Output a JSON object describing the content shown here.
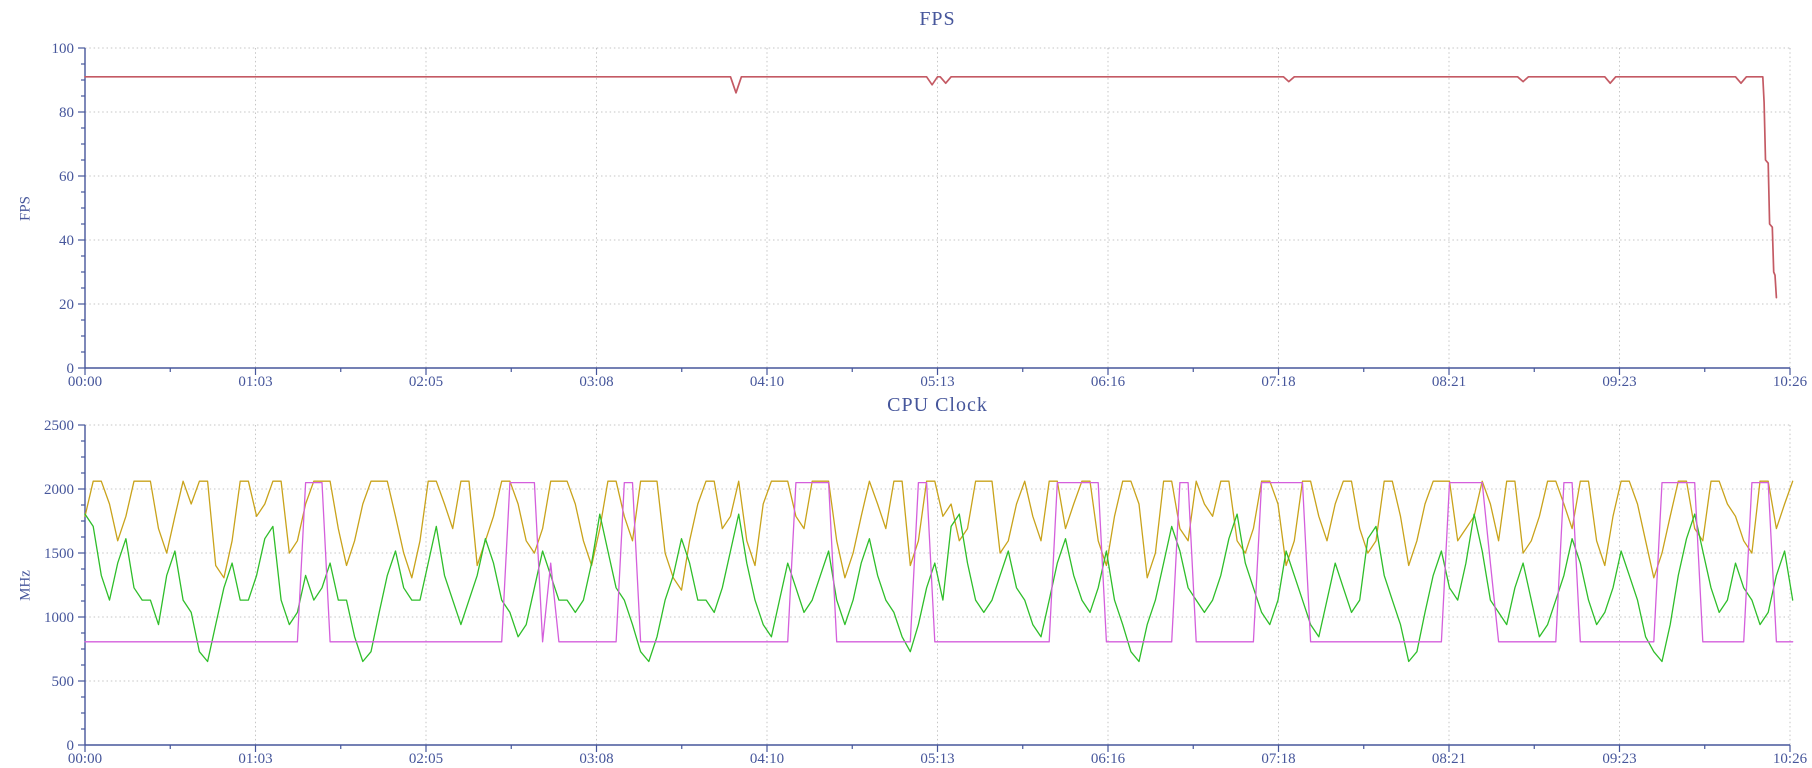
{
  "page": {
    "background": "#ffffff"
  },
  "palette": {
    "axis": "#46569b",
    "label": "#46569b",
    "grid": "#c6c6c6",
    "fps_line": "#c45a64",
    "cpu_gold": "#c9a31b",
    "cpu_green": "#2fbe2a",
    "cpu_magenta": "#d45fdc"
  },
  "chart_data": [
    {
      "type": "line",
      "title": "FPS",
      "ylabel": "FPS",
      "xlabel": "",
      "xlim": [
        0,
        626
      ],
      "ylim": [
        0,
        100
      ],
      "grid": true,
      "legend": "none",
      "yminor": 5,
      "yticks": [
        {
          "v": 0,
          "label": "0"
        },
        {
          "v": 20,
          "label": "20"
        },
        {
          "v": 40,
          "label": "40"
        },
        {
          "v": 60,
          "label": "60"
        },
        {
          "v": 80,
          "label": "80"
        },
        {
          "v": 100,
          "label": "100"
        }
      ],
      "xticks": [
        {
          "v": 0,
          "label": "00:00"
        },
        {
          "v": 62.6,
          "label": "01:03"
        },
        {
          "v": 125.2,
          "label": "02:05"
        },
        {
          "v": 187.8,
          "label": "03:08"
        },
        {
          "v": 250.4,
          "label": "04:10"
        },
        {
          "v": 313,
          "label": "05:13"
        },
        {
          "v": 375.6,
          "label": "06:16"
        },
        {
          "v": 438.2,
          "label": "07:18"
        },
        {
          "v": 500.8,
          "label": "08:21"
        },
        {
          "v": 563.4,
          "label": "09:23"
        },
        {
          "v": 626,
          "label": "10:26"
        }
      ],
      "series": [
        {
          "id": "fps-series",
          "name": "FPS",
          "color": "#c45a64",
          "width": 1.7,
          "points": [
            [
              0,
              91
            ],
            [
              237,
              91
            ],
            [
              239,
              86
            ],
            [
              241,
              91
            ],
            [
              309,
              91
            ],
            [
              311,
              88.5
            ],
            [
              313,
              91
            ],
            [
              314,
              91
            ],
            [
              316,
              89
            ],
            [
              318,
              91
            ],
            [
              440,
              91
            ],
            [
              442,
              89.5
            ],
            [
              444,
              91
            ],
            [
              526,
              91
            ],
            [
              528,
              89.5
            ],
            [
              530,
              91
            ],
            [
              558,
              91
            ],
            [
              560,
              89
            ],
            [
              562,
              91
            ],
            [
              606,
              91
            ],
            [
              608,
              89
            ],
            [
              610,
              91
            ],
            [
              616,
              91
            ],
            [
              616.5,
              83
            ],
            [
              617,
              65
            ],
            [
              618,
              64
            ],
            [
              618.5,
              45
            ],
            [
              619.5,
              44
            ],
            [
              620,
              30
            ],
            [
              620.5,
              29
            ],
            [
              621,
              22
            ]
          ]
        }
      ]
    },
    {
      "type": "line",
      "title": "CPU Clock",
      "ylabel": "MHz",
      "xlabel": "",
      "xlim": [
        0,
        626
      ],
      "ylim": [
        0,
        2500
      ],
      "grid": true,
      "legend": "none",
      "yminor": 125,
      "yticks": [
        {
          "v": 0,
          "label": "0"
        },
        {
          "v": 500,
          "label": "500"
        },
        {
          "v": 1000,
          "label": "1000"
        },
        {
          "v": 1500,
          "label": "1500"
        },
        {
          "v": 2000,
          "label": "2000"
        },
        {
          "v": 2500,
          "label": "2500"
        }
      ],
      "xticks": [
        {
          "v": 0,
          "label": "00:00"
        },
        {
          "v": 62.6,
          "label": "01:03"
        },
        {
          "v": 125.2,
          "label": "02:05"
        },
        {
          "v": 187.8,
          "label": "03:08"
        },
        {
          "v": 250.4,
          "label": "04:10"
        },
        {
          "v": 313,
          "label": "05:13"
        },
        {
          "v": 375.6,
          "label": "06:16"
        },
        {
          "v": 438.2,
          "label": "07:18"
        },
        {
          "v": 500.8,
          "label": "08:21"
        },
        {
          "v": 563.4,
          "label": "09:23"
        },
        {
          "v": 626,
          "label": "10:26"
        }
      ],
      "series": [
        {
          "id": "cpu-series-gold",
          "name": "CPU Clock (gold)",
          "color": "#c9a31b",
          "width": 1.3,
          "dt": 3,
          "values": [
            1787,
            2061,
            2061,
            1883,
            1595,
            1787,
            2061,
            2061,
            2061,
            1691,
            1499,
            1787,
            2061,
            1883,
            2061,
            2061,
            1402,
            1306,
            1595,
            2061,
            2061,
            1787,
            1883,
            2061,
            2061,
            1499,
            1595,
            1883,
            2061,
            2061,
            2061,
            1691,
            1402,
            1595,
            1883,
            2061,
            2061,
            2061,
            1787,
            1499,
            1306,
            1595,
            2061,
            2061,
            1883,
            1691,
            2061,
            2061,
            1402,
            1595,
            1787,
            2061,
            2061,
            1883,
            1595,
            1499,
            1691,
            2061,
            2061,
            2061,
            1883,
            1595,
            1402,
            1691,
            2061,
            2061,
            1787,
            1595,
            2061,
            2061,
            2061,
            1499,
            1306,
            1210,
            1595,
            1883,
            2061,
            2061,
            1691,
            1787,
            2061,
            1595,
            1402,
            1883,
            2061,
            2061,
            2061,
            1787,
            1691,
            2061,
            2061,
            2061,
            1595,
            1306,
            1499,
            1787,
            2061,
            1883,
            1691,
            2061,
            2061,
            1402,
            1595,
            2061,
            2061,
            1787,
            1883,
            1595,
            1691,
            2061,
            2061,
            2061,
            1499,
            1595,
            1883,
            2061,
            1787,
            1595,
            2061,
            2061,
            1691,
            1883,
            2061,
            2061,
            1595,
            1402,
            1787,
            2061,
            2061,
            1883,
            1306,
            1499,
            2061,
            2061,
            1691,
            1595,
            2061,
            1883,
            1787,
            2061,
            2061,
            1595,
            1499,
            1691,
            2061,
            2061,
            1883,
            1402,
            1595,
            2061,
            2061,
            1787,
            1595,
            1883,
            2061,
            2061,
            1691,
            1499,
            1595,
            2061,
            2061,
            1787,
            1402,
            1595,
            1883,
            2061,
            2061,
            2061,
            1595,
            1691,
            1787,
            2061,
            1883,
            1595,
            2061,
            2061,
            1499,
            1595,
            1787,
            2061,
            2061,
            1883,
            1691,
            2061,
            2061,
            1595,
            1402,
            1787,
            2061,
            2061,
            1883,
            1595,
            1306,
            1499,
            1787,
            2061,
            2061,
            1691,
            1595,
            2061,
            2061,
            1883,
            1787,
            1595,
            1499,
            2061,
            2061,
            1691,
            1883,
            2061
          ]
        },
        {
          "id": "cpu-series-green",
          "name": "CPU Clock (green)",
          "color": "#2fbe2a",
          "width": 1.3,
          "dt": 3,
          "values": [
            1804,
            1708,
            1325,
            1132,
            1421,
            1612,
            1228,
            1132,
            1132,
            941,
            1325,
            1516,
            1132,
            1036,
            729,
            652,
            941,
            1228,
            1421,
            1132,
            1132,
            1325,
            1612,
            1708,
            1132,
            941,
            1036,
            1325,
            1132,
            1228,
            1421,
            1132,
            1132,
            845,
            652,
            729,
            1036,
            1325,
            1516,
            1228,
            1132,
            1132,
            1421,
            1708,
            1325,
            1132,
            941,
            1132,
            1325,
            1612,
            1421,
            1132,
            1036,
            845,
            941,
            1228,
            1516,
            1325,
            1132,
            1132,
            1036,
            1132,
            1421,
            1804,
            1516,
            1228,
            1132,
            941,
            729,
            652,
            845,
            1132,
            1325,
            1612,
            1421,
            1132,
            1132,
            1036,
            1228,
            1516,
            1804,
            1421,
            1132,
            941,
            845,
            1132,
            1421,
            1228,
            1036,
            1132,
            1325,
            1516,
            1132,
            941,
            1132,
            1421,
            1612,
            1325,
            1132,
            1036,
            845,
            729,
            941,
            1228,
            1421,
            1132,
            1708,
            1804,
            1421,
            1132,
            1036,
            1132,
            1325,
            1516,
            1228,
            1132,
            941,
            845,
            1132,
            1421,
            1612,
            1325,
            1132,
            1036,
            1228,
            1516,
            1132,
            941,
            729,
            652,
            941,
            1132,
            1421,
            1708,
            1516,
            1228,
            1132,
            1036,
            1132,
            1325,
            1612,
            1804,
            1421,
            1228,
            1036,
            941,
            1132,
            1516,
            1325,
            1132,
            941,
            845,
            1132,
            1421,
            1228,
            1036,
            1132,
            1612,
            1708,
            1325,
            1132,
            941,
            652,
            729,
            1036,
            1325,
            1516,
            1228,
            1132,
            1421,
            1804,
            1516,
            1132,
            1036,
            941,
            1228,
            1421,
            1132,
            845,
            941,
            1132,
            1325,
            1612,
            1421,
            1132,
            941,
            1036,
            1228,
            1516,
            1325,
            1132,
            845,
            729,
            652,
            941,
            1325,
            1612,
            1804,
            1516,
            1228,
            1036,
            1132,
            1421,
            1228,
            1132,
            941,
            1036,
            1325,
            1516,
            1132
          ]
        },
        {
          "id": "cpu-series-magenta",
          "name": "CPU Clock (magenta)",
          "color": "#d45fdc",
          "width": 1.3,
          "dt": 3,
          "values": [
            806,
            806,
            806,
            806,
            806,
            806,
            806,
            806,
            806,
            806,
            806,
            806,
            806,
            806,
            806,
            806,
            806,
            806,
            806,
            806,
            806,
            806,
            806,
            806,
            806,
            806,
            806,
            2050,
            2050,
            2050,
            806,
            806,
            806,
            806,
            806,
            806,
            806,
            806,
            806,
            806,
            806,
            806,
            806,
            806,
            806,
            806,
            806,
            806,
            806,
            806,
            806,
            806,
            2050,
            2050,
            2050,
            2050,
            806,
            1420,
            806,
            806,
            806,
            806,
            806,
            806,
            806,
            806,
            2050,
            2050,
            806,
            806,
            806,
            806,
            806,
            806,
            806,
            806,
            806,
            806,
            806,
            806,
            806,
            806,
            806,
            806,
            806,
            806,
            806,
            2050,
            2050,
            2050,
            2050,
            2050,
            806,
            806,
            806,
            806,
            806,
            806,
            806,
            806,
            806,
            806,
            2050,
            2050,
            806,
            806,
            806,
            806,
            806,
            806,
            806,
            806,
            806,
            806,
            806,
            806,
            806,
            806,
            806,
            2050,
            2050,
            2050,
            2050,
            2050,
            2050,
            806,
            806,
            806,
            806,
            806,
            806,
            806,
            806,
            806,
            2050,
            2050,
            806,
            806,
            806,
            806,
            806,
            806,
            806,
            806,
            2050,
            2050,
            2050,
            2050,
            2050,
            2050,
            806,
            806,
            806,
            806,
            806,
            806,
            806,
            806,
            806,
            806,
            806,
            806,
            806,
            806,
            806,
            806,
            806,
            2050,
            2050,
            2050,
            2050,
            2050,
            1420,
            806,
            806,
            806,
            806,
            806,
            806,
            806,
            806,
            2050,
            2050,
            806,
            806,
            806,
            806,
            806,
            806,
            806,
            806,
            806,
            806,
            2050,
            2050,
            2050,
            2050,
            2050,
            806,
            806,
            806,
            806,
            806,
            806,
            2050,
            2050,
            2050,
            806,
            806,
            806
          ]
        }
      ]
    }
  ]
}
